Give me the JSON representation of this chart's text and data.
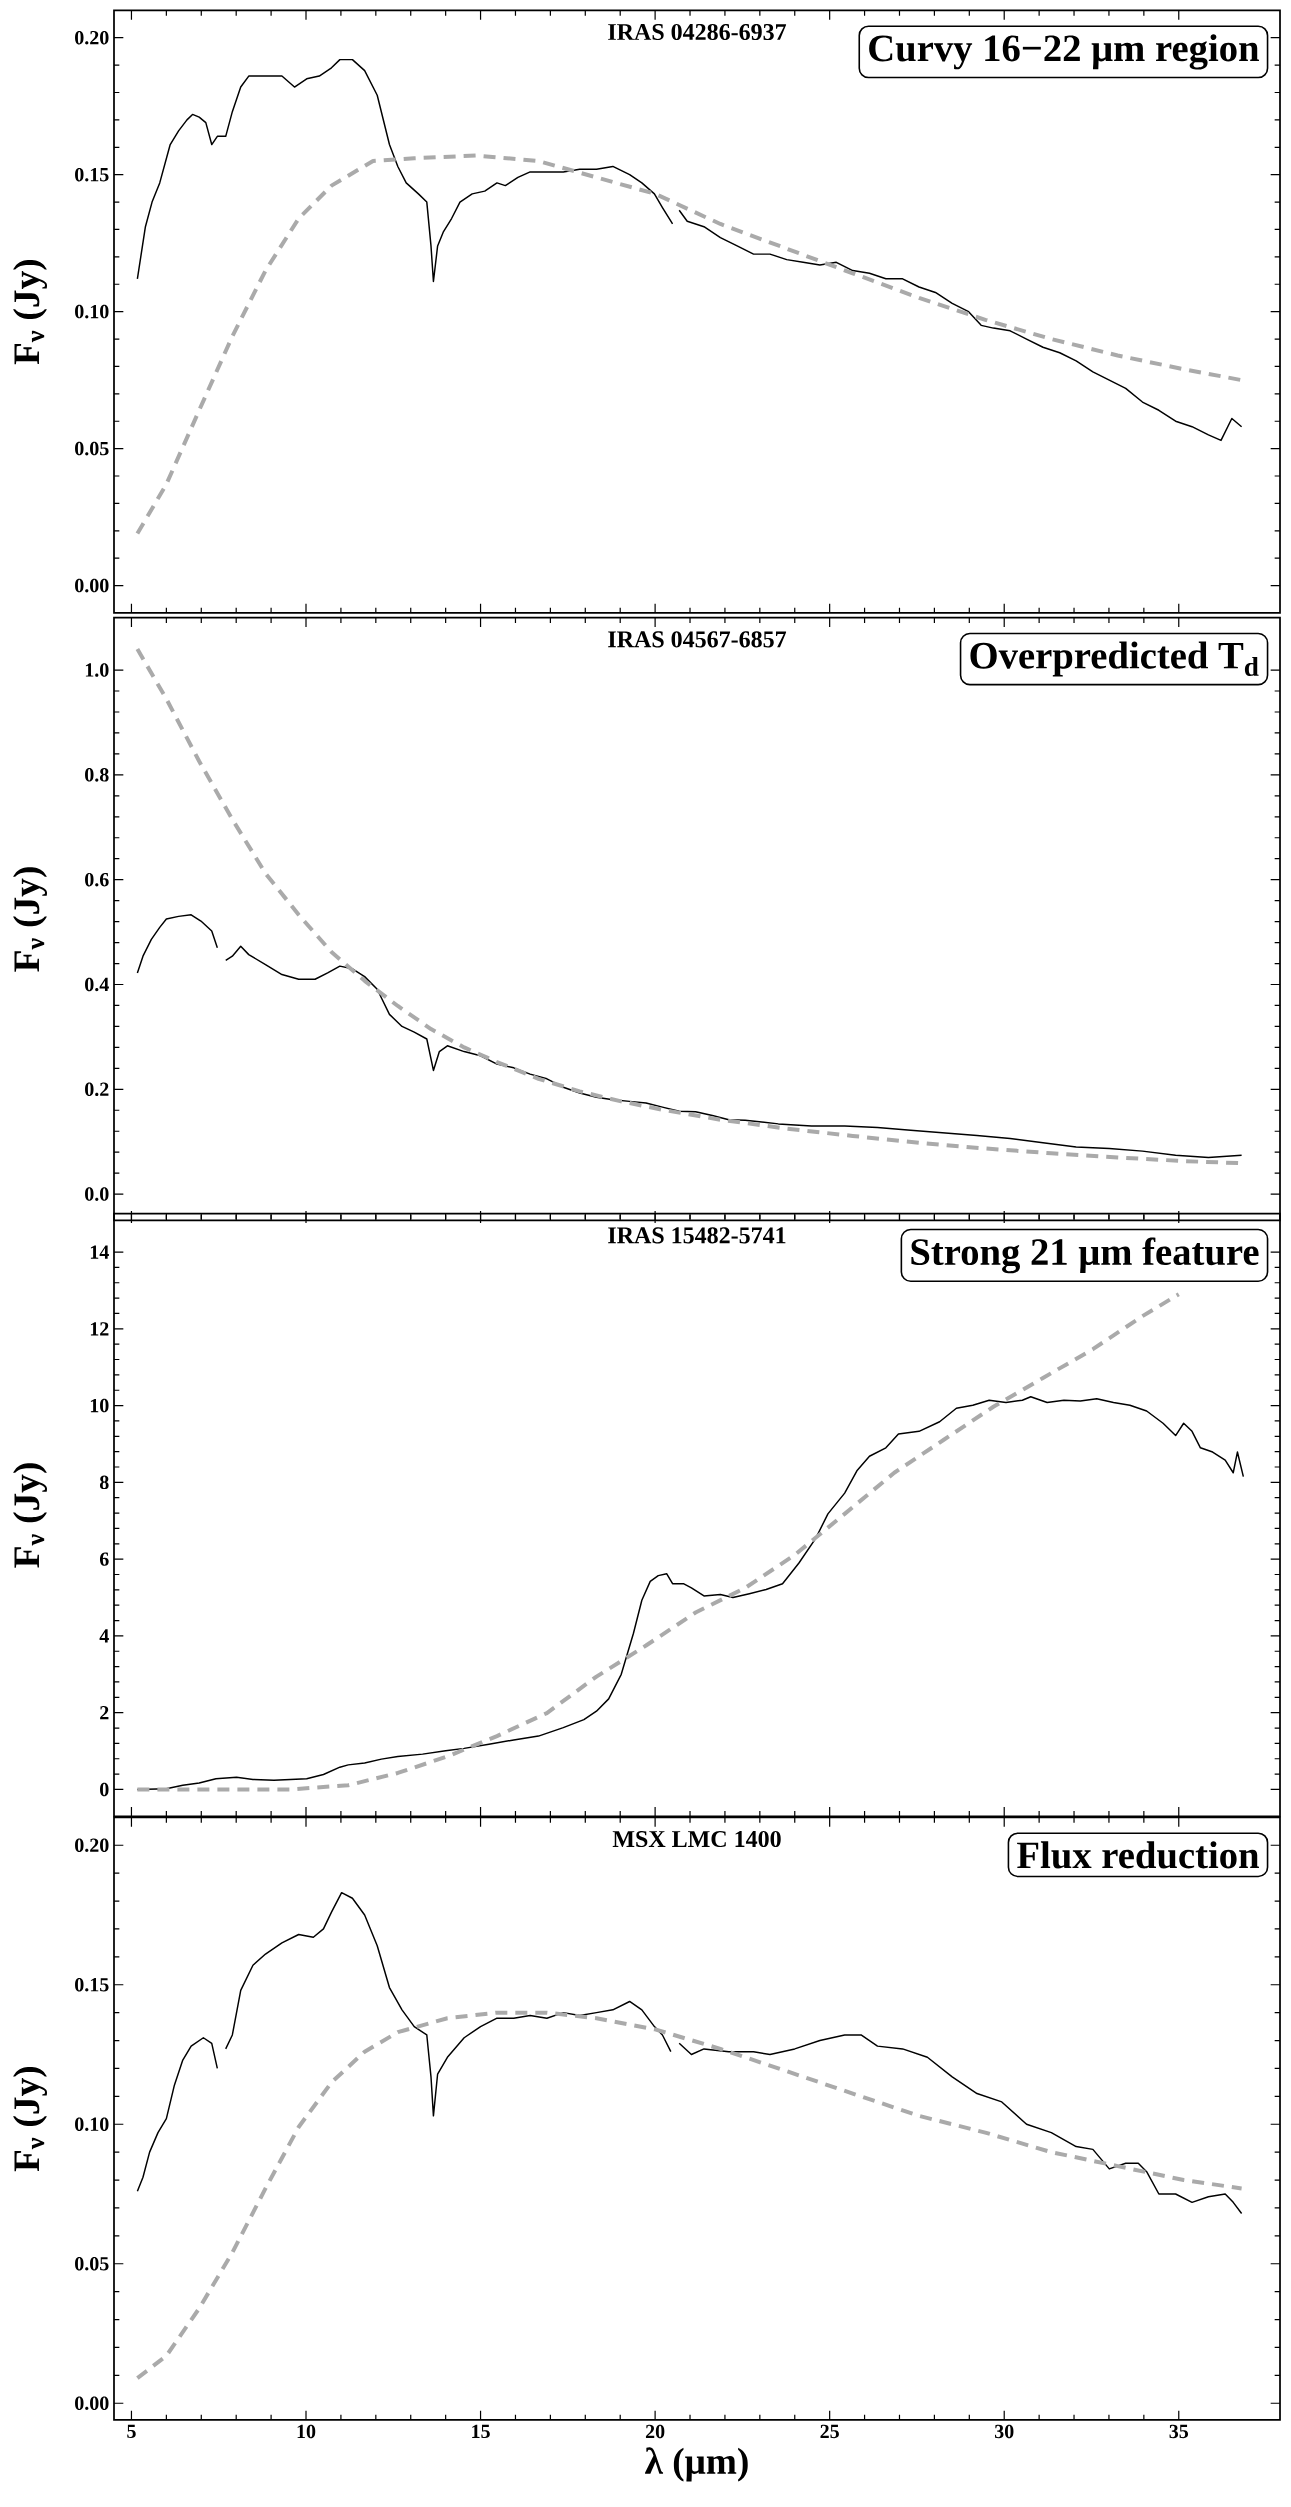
{
  "chart_data": [
    {
      "type": "line",
      "title": "IRAS 04286-6937",
      "ylabel": "F$_{ν}$ (Jy)",
      "annotations": [
        "Curvy 16−22 μm region"
      ],
      "xlim": [
        4.5,
        37.9
      ],
      "xticks": [
        5,
        10,
        15,
        20,
        25,
        30,
        35
      ],
      "ylim": [
        -0.01,
        0.21
      ],
      "yticks": [
        {
          "value": 0,
          "label": "0.00"
        },
        0.05,
        {
          "value": 0.1,
          "label": "0.10"
        },
        0.15,
        {
          "value": 0.2,
          "label": "0.20"
        }
      ],
      "tick_labels": "y",
      "series": [
        {
          "color": "#000000",
          "line_style": "solid",
          "x": [
            5.17,
            5.4,
            5.59,
            5.81,
            6.11,
            6.35,
            6.59,
            6.75,
            6.94,
            7.13,
            7.3,
            7.46,
            7.7,
            7.89,
            8.13,
            8.36,
            8.84,
            9.31,
            9.67,
            10.02,
            10.38,
            10.73,
            10.97,
            11.33,
            11.68,
            12.04,
            12.39,
            12.63,
            12.87,
            13.22,
            13.46,
            13.58,
            13.65,
            13.77,
            13.93,
            14.17,
            14.41,
            14.76,
            15.12,
            15.47,
            15.71,
            16.07,
            16.42,
            16.9,
            17.37,
            17.84,
            18.32,
            18.79,
            19.27,
            19.62,
            19.98,
            20.21,
            20.5,
            20.6,
            20.69,
            20.92,
            21.4,
            21.87,
            22.35,
            22.82,
            23.29,
            23.77,
            24.24,
            24.72,
            25.19,
            25.66,
            26.14,
            26.61,
            27.09,
            27.56,
            28.03,
            28.51,
            28.98,
            29.34,
            29.69,
            30.17,
            30.64,
            31.11,
            31.59,
            32.06,
            32.54,
            33.01,
            33.48,
            33.96,
            34.43,
            34.91,
            35.38,
            35.85,
            36.21,
            36.52,
            36.8
          ],
          "values": [
            0.112,
            0.131,
            0.14,
            0.147,
            0.161,
            0.166,
            0.17,
            0.172,
            0.171,
            0.169,
            0.161,
            0.164,
            0.164,
            0.173,
            0.182,
            0.186,
            0.186,
            0.186,
            0.182,
            0.185,
            0.186,
            0.189,
            0.192,
            0.192,
            0.188,
            0.179,
            0.161,
            0.153,
            0.147,
            0.143,
            0.14,
            0.124,
            0.111,
            0.124,
            0.129,
            0.134,
            0.14,
            0.143,
            0.144,
            0.147,
            0.146,
            0.149,
            0.151,
            0.151,
            0.151,
            0.152,
            0.152,
            0.153,
            0.15,
            0.147,
            0.143,
            0.138,
            0.132,
            null,
            0.137,
            0.133,
            0.131,
            0.127,
            0.124,
            0.121,
            0.121,
            0.119,
            0.118,
            0.117,
            0.118,
            0.115,
            0.114,
            0.112,
            0.112,
            0.109,
            0.107,
            0.103,
            0.1,
            0.095,
            0.094,
            0.093,
            0.09,
            0.087,
            0.085,
            0.082,
            0.078,
            0.075,
            0.072,
            0.067,
            0.064,
            0.06,
            0.058,
            0.055,
            0.053,
            0.061,
            0.058
          ]
        },
        {
          "color": "#aaaaaa",
          "line_style": "dashed",
          "x": [
            5.17,
            6.0,
            6.94,
            7.89,
            8.84,
            9.79,
            10.73,
            11.92,
            13.1,
            14.88,
            16.66,
            18.32,
            20.0,
            21.87,
            23.77,
            25.66,
            27.56,
            29.46,
            31.35,
            33.25,
            35.14,
            36.8
          ],
          "values": [
            0.019,
            0.037,
            0.064,
            0.091,
            0.115,
            0.134,
            0.146,
            0.155,
            0.156,
            0.157,
            0.155,
            0.149,
            0.143,
            0.132,
            0.123,
            0.114,
            0.105,
            0.097,
            0.09,
            0.084,
            0.079,
            0.075
          ]
        }
      ]
    },
    {
      "type": "line",
      "title": "IRAS 04567-6857",
      "ylabel": "F$_{ν}$ (Jy)",
      "annotations": [
        "Overpredicted T$_{d}$"
      ],
      "xlim": [
        4.5,
        37.9
      ],
      "xticks": [
        5,
        10,
        15,
        20,
        25,
        30,
        35
      ],
      "ylim": [
        -0.05,
        1.1
      ],
      "yticks": [
        {
          "value": 0,
          "label": "0.0"
        },
        0.2,
        0.4,
        0.6,
        0.8,
        {
          "value": 1,
          "label": "1.0"
        }
      ],
      "tick_labels": "y",
      "series": [
        {
          "color": "#000000",
          "line_style": "solid",
          "x": [
            5.17,
            5.33,
            5.57,
            5.81,
            6.0,
            6.35,
            6.71,
            6.99,
            7.3,
            7.46,
            7.58,
            7.7,
            7.89,
            8.13,
            8.36,
            8.84,
            9.31,
            9.79,
            10.26,
            10.62,
            10.97,
            11.33,
            11.68,
            12.04,
            12.39,
            12.75,
            13.1,
            13.46,
            13.65,
            13.82,
            14.05,
            14.53,
            15.0,
            15.47,
            15.95,
            16.42,
            16.9,
            17.37,
            17.84,
            18.32,
            18.79,
            19.27,
            19.74,
            20.21,
            20.69,
            21.16,
            21.64,
            22.11,
            22.58,
            23.53,
            24.48,
            25.43,
            26.37,
            27.32,
            28.27,
            29.22,
            30.17,
            31.11,
            32.06,
            33.01,
            33.96,
            34.91,
            35.85,
            36.8
          ],
          "values": [
            0.422,
            0.454,
            0.486,
            0.509,
            0.525,
            0.53,
            0.533,
            0.521,
            0.502,
            0.47,
            null,
            0.446,
            0.454,
            0.473,
            0.457,
            0.438,
            0.419,
            0.41,
            0.41,
            0.422,
            0.435,
            0.43,
            0.415,
            0.391,
            0.343,
            0.32,
            0.309,
            0.296,
            0.236,
            0.272,
            0.283,
            0.272,
            0.264,
            0.248,
            0.241,
            0.229,
            0.22,
            0.204,
            0.193,
            0.185,
            0.18,
            0.177,
            0.174,
            0.166,
            0.158,
            0.157,
            0.15,
            0.142,
            0.141,
            0.134,
            0.13,
            0.13,
            0.127,
            0.122,
            0.117,
            0.112,
            0.106,
            0.098,
            0.09,
            0.087,
            0.082,
            0.074,
            0.07,
            0.074
          ]
        },
        {
          "color": "#aaaaaa",
          "line_style": "dashed",
          "x": [
            5.17,
            6.0,
            6.94,
            7.89,
            8.84,
            9.79,
            10.73,
            11.68,
            12.63,
            13.58,
            14.53,
            15.47,
            16.66,
            17.84,
            19.03,
            20.21,
            21.87,
            23.77,
            25.66,
            27.56,
            29.46,
            31.35,
            33.25,
            35.14,
            36.8
          ],
          "values": [
            1.04,
            0.945,
            0.826,
            0.715,
            0.612,
            0.533,
            0.462,
            0.407,
            0.359,
            0.315,
            0.28,
            0.252,
            0.22,
            0.196,
            0.177,
            0.161,
            0.142,
            0.125,
            0.111,
            0.098,
            0.087,
            0.078,
            0.07,
            0.063,
            0.059
          ]
        }
      ]
    },
    {
      "type": "line",
      "title": "IRAS 15482-5741",
      "ylabel": "F$_{ν}$ (Jy)",
      "annotations": [
        "Strong 21 μm feature"
      ],
      "xlim": [
        4.5,
        37.9
      ],
      "xticks": [
        5,
        10,
        15,
        20,
        25,
        30,
        35
      ],
      "ylim": [
        -0.7,
        15
      ],
      "yticks": [
        0,
        2,
        4,
        6,
        8,
        10,
        12,
        14
      ],
      "tick_labels": "y",
      "series": [
        {
          "color": "#000000",
          "line_style": "solid",
          "x": [
            5.17,
            6.0,
            6.47,
            6.94,
            7.42,
            8.01,
            8.48,
            9.08,
            10.02,
            10.5,
            10.97,
            11.21,
            11.68,
            12.16,
            12.63,
            13.34,
            14.0,
            14.53,
            15.24,
            15.95,
            16.66,
            17.37,
            17.96,
            18.32,
            18.67,
            19.03,
            19.38,
            19.62,
            19.86,
            20.09,
            20.33,
            20.5,
            20.81,
            21.04,
            21.4,
            21.87,
            22.23,
            22.7,
            23.18,
            23.65,
            24.12,
            24.6,
            24.95,
            25.43,
            25.78,
            26.14,
            26.61,
            26.97,
            27.56,
            28.15,
            28.63,
            29.1,
            29.57,
            30.05,
            30.52,
            30.76,
            31.23,
            31.71,
            32.18,
            32.65,
            33.13,
            33.6,
            34.08,
            34.55,
            34.91,
            35.14,
            35.38,
            35.62,
            35.97,
            36.33,
            36.56,
            36.68,
            36.85
          ],
          "values": [
            0.0,
            0.02,
            0.11,
            0.17,
            0.28,
            0.32,
            0.26,
            0.24,
            0.28,
            0.39,
            0.58,
            0.64,
            0.69,
            0.79,
            0.86,
            0.92,
            1.01,
            1.07,
            1.18,
            1.29,
            1.39,
            1.61,
            1.82,
            2.04,
            2.36,
            3.0,
            4.07,
            4.93,
            5.42,
            5.57,
            5.62,
            5.36,
            5.36,
            5.25,
            5.04,
            5.08,
            5.0,
            5.1,
            5.21,
            5.36,
            5.9,
            6.54,
            7.18,
            7.72,
            8.3,
            8.68,
            8.9,
            9.26,
            9.33,
            9.58,
            9.93,
            10.01,
            10.14,
            10.08,
            10.14,
            10.23,
            10.08,
            10.14,
            10.12,
            10.18,
            10.08,
            10.01,
            9.86,
            9.54,
            9.22,
            9.54,
            9.33,
            8.9,
            8.79,
            8.58,
            8.25,
            8.79,
            8.15
          ]
        },
        {
          "color": "#aaaaaa",
          "line_style": "dashed",
          "x": [
            5.17,
            7.18,
            9.55,
            11.21,
            12.63,
            14.05,
            15.47,
            16.9,
            18.32,
            19.74,
            21.16,
            22.58,
            24.0,
            25.43,
            26.85,
            28.27,
            29.69,
            31.11,
            32.54,
            33.96,
            35.0
          ],
          "values": [
            0.0,
            0.0,
            0.0,
            0.11,
            0.43,
            0.86,
            1.39,
            1.99,
            2.94,
            3.75,
            4.61,
            5.25,
            6.11,
            7.18,
            8.25,
            9.11,
            9.97,
            10.72,
            11.47,
            12.33,
            12.9
          ]
        }
      ]
    },
    {
      "type": "line",
      "title": "MSX LMC 1400",
      "xlabel": "λ (μm)",
      "ylabel": "F$_{ν}$ (Jy)",
      "annotations": [
        "Flux reduction"
      ],
      "xlim": [
        4.5,
        37.9
      ],
      "xticks": [
        5,
        10,
        15,
        20,
        25,
        30,
        35
      ],
      "ylim": [
        -0.006,
        0.21
      ],
      "yticks": [
        {
          "value": 0,
          "label": "0.00"
        },
        0.05,
        {
          "value": 0.1,
          "label": "0.10"
        },
        0.15,
        {
          "value": 0.2,
          "label": "0.20"
        }
      ],
      "series": [
        {
          "color": "#000000",
          "line_style": "solid",
          "x": [
            5.17,
            5.33,
            5.52,
            5.76,
            6.0,
            6.23,
            6.47,
            6.71,
            7.06,
            7.3,
            7.46,
            7.58,
            7.7,
            7.89,
            8.13,
            8.48,
            8.84,
            9.31,
            9.79,
            10.21,
            10.5,
            10.73,
            11.02,
            11.33,
            11.68,
            12.04,
            12.39,
            12.75,
            13.1,
            13.46,
            13.58,
            13.65,
            13.77,
            14.05,
            14.53,
            15.0,
            15.47,
            15.95,
            16.42,
            16.9,
            17.37,
            17.84,
            18.32,
            18.79,
            19.27,
            19.62,
            19.98,
            20.21,
            20.45,
            20.57,
            20.69,
            21.04,
            21.4,
            22.11,
            22.82,
            23.29,
            24.0,
            24.72,
            25.43,
            25.9,
            26.37,
            27.09,
            27.8,
            28.51,
            29.22,
            29.93,
            30.64,
            31.35,
            32.06,
            32.54,
            33.01,
            33.48,
            33.84,
            34.08,
            34.43,
            34.91,
            35.38,
            35.85,
            36.33,
            36.56,
            36.8
          ],
          "values": [
            0.076,
            0.081,
            0.09,
            0.097,
            0.102,
            0.114,
            0.123,
            0.128,
            0.131,
            0.129,
            0.12,
            null,
            0.127,
            0.132,
            0.148,
            0.157,
            0.161,
            0.165,
            0.168,
            0.167,
            0.17,
            0.176,
            0.183,
            0.181,
            0.175,
            0.164,
            0.149,
            0.141,
            0.135,
            0.132,
            0.117,
            0.103,
            0.118,
            0.124,
            0.131,
            0.135,
            0.138,
            0.138,
            0.139,
            0.138,
            0.14,
            0.139,
            0.14,
            0.141,
            0.144,
            0.141,
            0.135,
            0.132,
            0.126,
            null,
            0.129,
            0.125,
            0.127,
            0.126,
            0.126,
            0.125,
            0.127,
            0.13,
            0.132,
            0.132,
            0.128,
            0.127,
            0.124,
            0.117,
            0.111,
            0.108,
            0.1,
            0.097,
            0.092,
            0.091,
            0.084,
            0.086,
            0.086,
            0.083,
            0.075,
            0.075,
            0.072,
            0.074,
            0.075,
            0.072,
            0.068
          ]
        },
        {
          "color": "#aaaaaa",
          "line_style": "dashed",
          "x": [
            5.17,
            6.0,
            6.94,
            7.89,
            8.84,
            9.79,
            10.73,
            11.68,
            12.63,
            14.05,
            15.47,
            16.9,
            18.32,
            20.0,
            21.87,
            23.77,
            25.66,
            27.56,
            29.46,
            31.35,
            33.25,
            35.14,
            36.8
          ],
          "values": [
            0.009,
            0.017,
            0.034,
            0.054,
            0.077,
            0.099,
            0.115,
            0.126,
            0.133,
            0.138,
            0.14,
            0.14,
            0.138,
            0.134,
            0.127,
            0.119,
            0.111,
            0.103,
            0.097,
            0.09,
            0.085,
            0.08,
            0.077
          ]
        }
      ]
    }
  ]
}
